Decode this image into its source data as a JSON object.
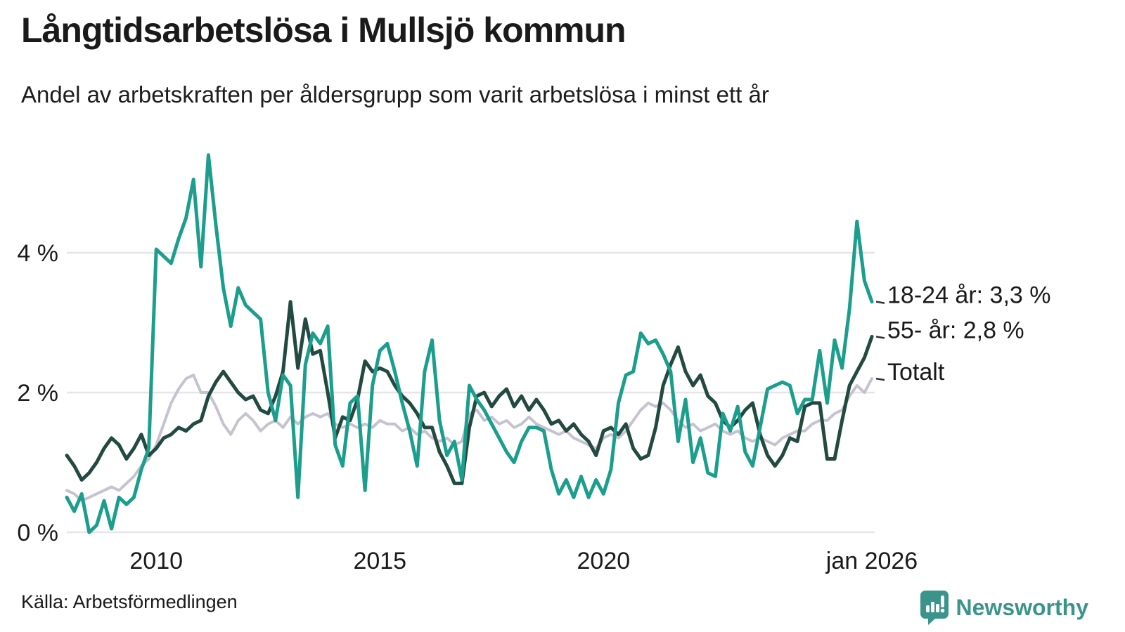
{
  "header": {
    "title": "Långtidsarbetslösa i Mullsjö kommun",
    "subtitle": "Andel av arbetskraften per åldersgrupp som varit arbetslösa i minst ett år"
  },
  "chart_data": {
    "type": "line",
    "title": "Långtidsarbetslösa i Mullsjö kommun",
    "subtitle": "Andel av arbetskraften per åldersgrupp som varit arbetslösa i minst ett år",
    "unit": "%",
    "x_start": "2008-01",
    "x_end": "2026-01",
    "x_step_months": 2,
    "xlabel": "",
    "ylabel": "",
    "ylim": [
      0,
      5.6
    ],
    "grid": "horizontal",
    "legend_position": "right-of-last-point",
    "gridline_color": "#e5e5ea",
    "axis_text_color": "#1a1a1a",
    "y_ticks": [
      {
        "value": 0,
        "label": "0 %"
      },
      {
        "value": 2,
        "label": "2 %"
      },
      {
        "value": 4,
        "label": "4 %"
      }
    ],
    "x_ticks": [
      {
        "month_index": 24,
        "label": "2010"
      },
      {
        "month_index": 84,
        "label": "2015"
      },
      {
        "month_index": 144,
        "label": "2020"
      },
      {
        "month_index": 216,
        "label": "jan 2026"
      }
    ],
    "series": [
      {
        "name": "18-24 år",
        "label": "18-24 år: 3,3 %",
        "last_value": 3.3,
        "color": "#1c9e8d",
        "stroke_width": 5,
        "values": [
          0.5,
          0.3,
          0.55,
          0.0,
          0.1,
          0.45,
          0.05,
          0.5,
          0.4,
          0.5,
          0.9,
          1.2,
          4.05,
          3.95,
          3.85,
          4.2,
          4.5,
          5.05,
          3.8,
          5.4,
          4.4,
          3.5,
          2.95,
          3.5,
          3.25,
          3.15,
          3.05,
          2.0,
          1.6,
          2.25,
          2.1,
          0.5,
          2.4,
          2.85,
          2.7,
          2.95,
          1.25,
          0.95,
          1.85,
          1.95,
          0.6,
          2.1,
          2.6,
          2.7,
          2.3,
          1.85,
          1.45,
          0.95,
          2.3,
          2.75,
          1.6,
          1.1,
          1.3,
          0.75,
          2.1,
          1.9,
          1.75,
          1.55,
          1.35,
          1.15,
          1.0,
          1.3,
          1.5,
          1.5,
          1.45,
          0.9,
          0.55,
          0.75,
          0.5,
          0.8,
          0.5,
          0.75,
          0.55,
          0.9,
          1.85,
          2.25,
          2.3,
          2.85,
          2.7,
          2.75,
          2.55,
          2.3,
          1.3,
          1.9,
          1.0,
          1.35,
          0.85,
          0.8,
          1.7,
          1.45,
          1.8,
          1.15,
          0.95,
          1.5,
          2.05,
          2.1,
          2.15,
          2.1,
          1.7,
          1.9,
          1.9,
          2.6,
          1.85,
          2.75,
          2.35,
          3.2,
          4.45,
          3.6,
          3.3
        ]
      },
      {
        "name": "55- år",
        "label": "55- år: 2,8 %",
        "last_value": 2.8,
        "color": "#234a40",
        "stroke_width": 5,
        "values": [
          1.1,
          0.95,
          0.75,
          0.85,
          1.0,
          1.2,
          1.35,
          1.25,
          1.05,
          1.2,
          1.4,
          1.1,
          1.2,
          1.35,
          1.4,
          1.5,
          1.45,
          1.55,
          1.6,
          1.95,
          2.15,
          2.3,
          2.15,
          2.0,
          1.9,
          1.95,
          1.75,
          1.7,
          1.95,
          2.3,
          3.3,
          2.35,
          3.05,
          2.55,
          2.6,
          2.0,
          1.35,
          1.65,
          1.6,
          1.9,
          2.45,
          2.3,
          2.35,
          2.3,
          2.1,
          1.95,
          1.85,
          1.7,
          1.5,
          1.5,
          1.15,
          0.95,
          0.7,
          0.7,
          1.5,
          1.95,
          2.0,
          1.8,
          1.95,
          2.05,
          1.8,
          1.95,
          1.75,
          1.9,
          1.75,
          1.55,
          1.6,
          1.45,
          1.55,
          1.4,
          1.3,
          1.1,
          1.45,
          1.5,
          1.4,
          1.55,
          1.2,
          1.05,
          1.1,
          1.5,
          2.1,
          2.4,
          2.65,
          2.3,
          2.1,
          2.25,
          1.95,
          1.85,
          1.6,
          1.5,
          1.6,
          1.75,
          1.85,
          1.4,
          1.1,
          0.95,
          1.1,
          1.35,
          1.3,
          1.8,
          1.85,
          1.85,
          1.05,
          1.05,
          1.6,
          2.1,
          2.3,
          2.5,
          2.8
        ]
      },
      {
        "name": "Totalt",
        "label": "Totalt",
        "last_value": 2.2,
        "color": "#c6c3d1",
        "stroke_width": 4,
        "values": [
          0.6,
          0.55,
          0.45,
          0.5,
          0.55,
          0.6,
          0.65,
          0.6,
          0.7,
          0.8,
          0.95,
          1.05,
          1.25,
          1.55,
          1.85,
          2.05,
          2.2,
          2.25,
          2.0,
          2.0,
          1.8,
          1.55,
          1.4,
          1.6,
          1.7,
          1.6,
          1.45,
          1.55,
          1.6,
          1.5,
          1.65,
          1.55,
          1.65,
          1.7,
          1.65,
          1.7,
          1.55,
          1.5,
          1.55,
          1.5,
          1.55,
          1.5,
          1.6,
          1.55,
          1.55,
          1.45,
          1.5,
          1.4,
          1.45,
          1.35,
          1.3,
          1.35,
          1.25,
          1.3,
          1.7,
          1.75,
          1.6,
          1.65,
          1.55,
          1.6,
          1.5,
          1.55,
          1.65,
          1.55,
          1.5,
          1.45,
          1.4,
          1.45,
          1.35,
          1.3,
          1.25,
          1.2,
          1.35,
          1.4,
          1.35,
          1.45,
          1.6,
          1.75,
          1.85,
          1.8,
          1.85,
          1.75,
          1.6,
          1.5,
          1.55,
          1.45,
          1.5,
          1.55,
          1.45,
          1.4,
          1.45,
          1.35,
          1.3,
          1.35,
          1.3,
          1.25,
          1.35,
          1.4,
          1.45,
          1.45,
          1.55,
          1.6,
          1.6,
          1.7,
          1.75,
          1.95,
          2.1,
          2.0,
          2.2
        ]
      }
    ]
  },
  "footer": {
    "source": "Källa: Arbetsförmedlingen",
    "brand": "Newsworthy",
    "brand_color": "#3b948b"
  }
}
